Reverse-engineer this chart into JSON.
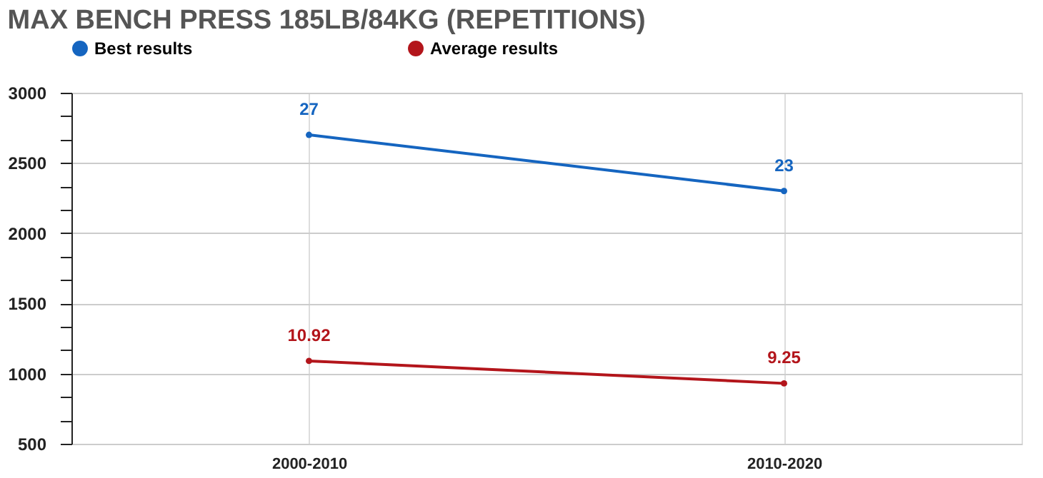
{
  "chart_data": {
    "type": "line",
    "title": "MAX BENCH PRESS 185LB/84KG (REPETITIONS)",
    "categories": [
      "2000-2010",
      "2010-2020"
    ],
    "series": [
      {
        "name": "Best results",
        "color": "#1565c0",
        "values": [
          2700,
          2300
        ]
      },
      {
        "name": "Average results",
        "color": "#b3151b",
        "values": [
          1090,
          930
        ]
      }
    ],
    "annotations": [
      {
        "text": "27",
        "x": "2000-2010",
        "y": 2700
      },
      {
        "text": "23",
        "x": "2010-2020",
        "y": 2300
      },
      {
        "text": "10.92",
        "x": "2000-2010",
        "y": 1090
      },
      {
        "text": "9.25",
        "x": "2010-2020",
        "y": 930
      }
    ],
    "ylim": [
      500,
      3000
    ],
    "yticks": [
      500,
      {
        "value": 667,
        "label": null
      },
      {
        "value": 833,
        "label": null
      },
      1000,
      {
        "value": 1167,
        "label": null
      },
      {
        "value": 1333,
        "label": null
      },
      1500,
      {
        "value": 1667,
        "label": null
      },
      {
        "value": 1833,
        "label": null
      },
      2000,
      {
        "value": 2167,
        "label": null
      },
      {
        "value": 2333,
        "label": null
      },
      2500,
      {
        "value": 2667,
        "label": null
      },
      {
        "value": 2833,
        "label": null
      },
      3000
    ],
    "grid": true,
    "legend": "top",
    "marker": "circle",
    "line_style": "solid"
  }
}
